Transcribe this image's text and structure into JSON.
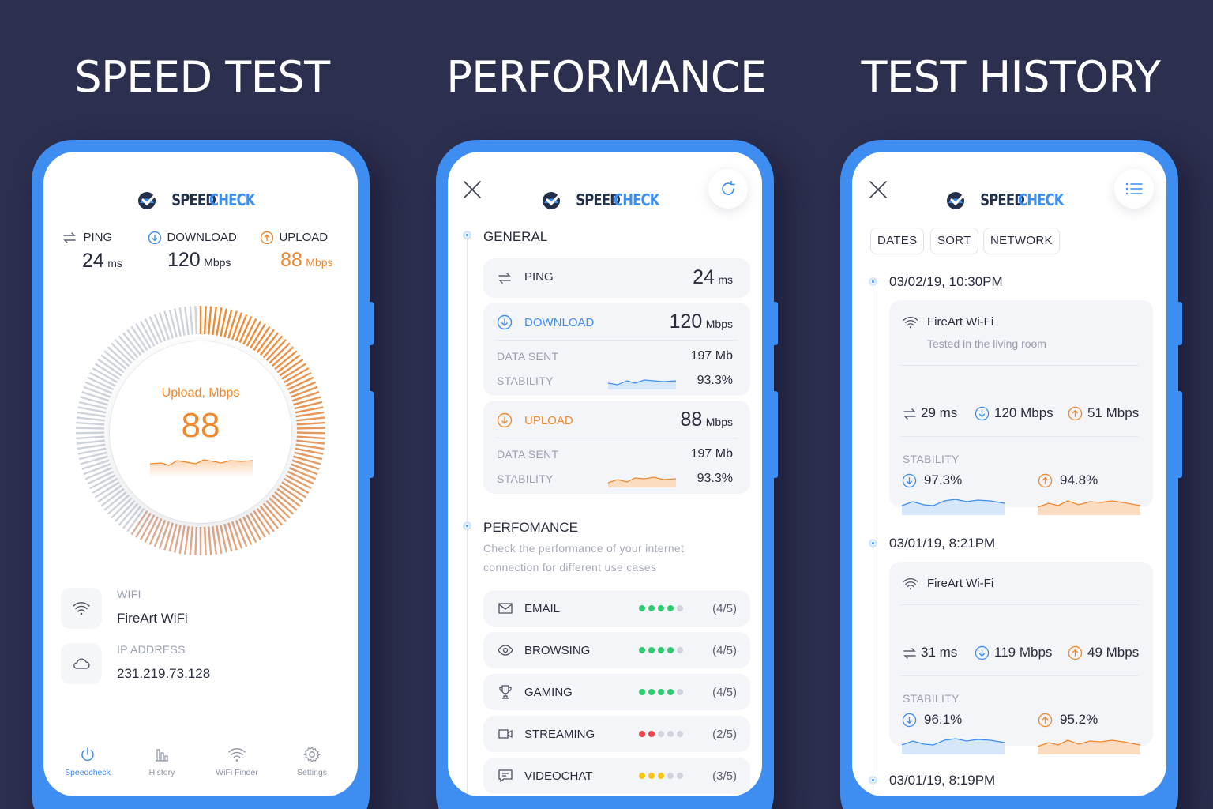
{
  "headings": [
    "SPEED TEST",
    "PERFORMANCE",
    "TEST HISTORY"
  ],
  "brand": {
    "word1": "SPEED",
    "word2": "CHECK"
  },
  "colors": {
    "bg": "#2d2f4f",
    "blue": "#3d8ef0",
    "orange": "#f0882e",
    "green": "#2ecc71",
    "red": "#e8424a",
    "yellow": "#f5c518"
  },
  "speedtest": {
    "ping": {
      "label": "PING",
      "value": "24",
      "unit": "ms"
    },
    "download": {
      "label": "DOWNLOAD",
      "value": "120",
      "unit": "Mbps"
    },
    "upload": {
      "label": "UPLOAD",
      "value": "88",
      "unit": "Mbps"
    },
    "gauge": {
      "label": "Upload, Mbps",
      "value": "88",
      "level": 0.6
    },
    "wifi": {
      "label": "WIFI",
      "value": "FireArt WiFi"
    },
    "ip": {
      "label": "IP ADDRESS",
      "value": "231.219.73.128"
    },
    "nav": [
      "Speedcheck",
      "History",
      "WiFi Finder",
      "Settings"
    ]
  },
  "performance": {
    "general_title": "GENERAL",
    "ping": {
      "label": "PING",
      "value": "24",
      "unit": "ms"
    },
    "download": {
      "label": "DOWNLOAD",
      "value": "120",
      "unit": "Mbps",
      "data_sent_label": "DATA SENT",
      "data_sent": "197 Mb",
      "stability_label": "STABILITY",
      "stability": "93.3%"
    },
    "upload": {
      "label": "UPLOAD",
      "value": "88",
      "unit": "Mbps",
      "data_sent_label": "DATA SENT",
      "data_sent": "197 Mb",
      "stability_label": "STABILITY",
      "stability": "93.3%"
    },
    "perf_title": "PERFOMANCE",
    "perf_desc_1": "Check the performance of your internet",
    "perf_desc_2": "connection for different use cases",
    "uses": [
      {
        "label": "EMAIL",
        "score": "(4/5)",
        "rating": 4,
        "color": "#2ecc71",
        "icon": "mail-icon"
      },
      {
        "label": "BROWSING",
        "score": "(4/5)",
        "rating": 4,
        "color": "#2ecc71",
        "icon": "eye-icon"
      },
      {
        "label": "GAMING",
        "score": "(4/5)",
        "rating": 4,
        "color": "#2ecc71",
        "icon": "trophy-icon"
      },
      {
        "label": "STREAMING",
        "score": "(2/5)",
        "rating": 2,
        "color": "#e8424a",
        "icon": "video-icon"
      },
      {
        "label": "VIDEOCHAT",
        "score": "(3/5)",
        "rating": 3,
        "color": "#f5c518",
        "icon": "chat-icon"
      }
    ]
  },
  "history": {
    "filters": [
      "DATES",
      "SORT",
      "NETWORK"
    ],
    "entries": [
      {
        "date": "03/02/19, 10:30PM",
        "network": "FireArt Wi-Fi",
        "note": "Tested in the living room",
        "ping": "29 ms",
        "down": "120 Mbps",
        "up": "51 Mbps",
        "stability_label": "STABILITY",
        "stab_down": "97.3%",
        "stab_up": "94.8%"
      },
      {
        "date": "03/01/19, 8:21PM",
        "network": "FireArt Wi-Fi",
        "note": "",
        "ping": "31 ms",
        "down": "119 Mbps",
        "up": "49 Mbps",
        "stability_label": "STABILITY",
        "stab_down": "96.1%",
        "stab_up": "95.2%"
      },
      {
        "date": "03/01/19, 8:19PM"
      }
    ]
  }
}
